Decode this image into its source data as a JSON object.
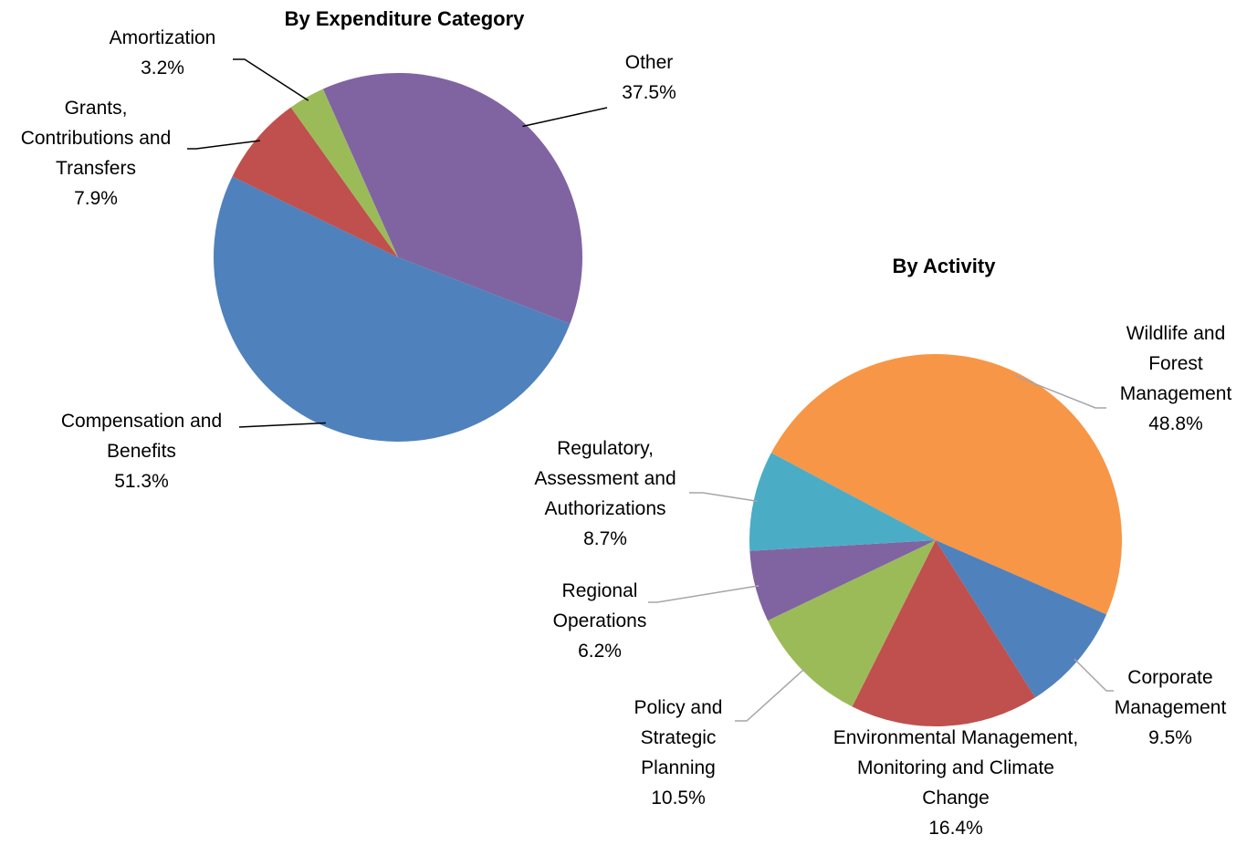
{
  "chart_data": [
    {
      "type": "pie",
      "title": "By Expenditure Category",
      "categories": [
        "Other",
        "Compensation and Benefits",
        "Grants, Contributions and Transfers",
        "Amortization"
      ],
      "values": [
        37.5,
        51.3,
        7.9,
        3.2
      ],
      "value_labels": [
        "37.5%",
        "51.3%",
        "7.9%",
        "3.2%"
      ],
      "colors": [
        "#8064a2",
        "#4f81bd",
        "#c0504d",
        "#9bbb59"
      ]
    },
    {
      "type": "pie",
      "title": "By Activity",
      "categories": [
        "Wildlife and Forest Management",
        "Corporate Management",
        "Environmental Management, Monitoring and Climate Change",
        "Policy and Strategic Planning",
        "Regional Operations",
        "Regulatory, Assessment and Authorizations"
      ],
      "values": [
        48.8,
        9.5,
        16.4,
        10.5,
        6.2,
        8.7
      ],
      "value_labels": [
        "48.8%",
        "9.5%",
        "16.4%",
        "10.5%",
        "6.2%",
        "8.7%"
      ],
      "colors": [
        "#f79646",
        "#4f81bd",
        "#c0504d",
        "#9bbb59",
        "#8064a2",
        "#4bacc6"
      ]
    }
  ]
}
